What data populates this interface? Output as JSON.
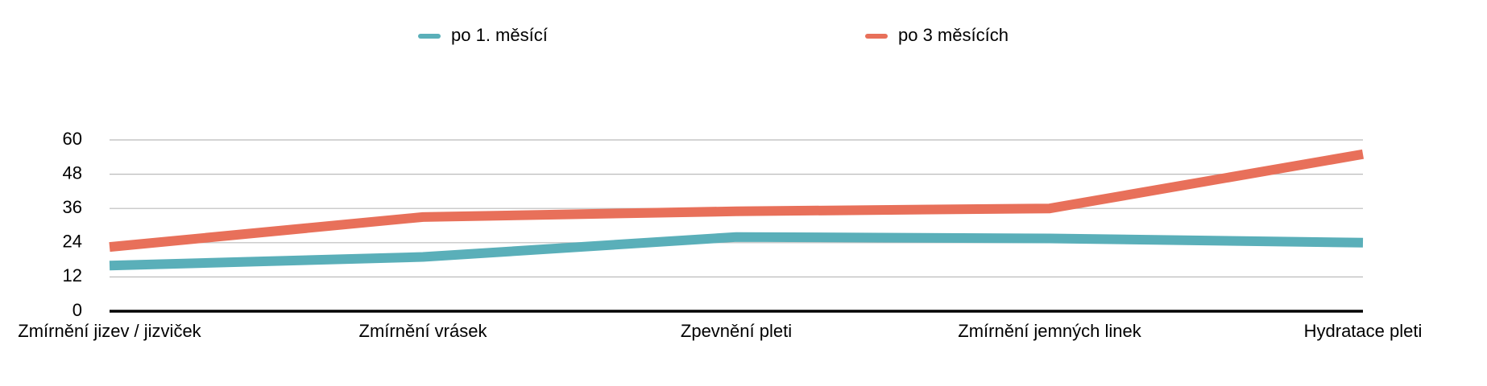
{
  "chart_data": {
    "type": "line",
    "categories": [
      "Zmírnění jizev / jizviček",
      "Zmírnění vrásek",
      "Zpevnění pleti",
      "Zmírnění jemných linek",
      "Hydratace pleti"
    ],
    "series": [
      {
        "name": "po 1. měsící",
        "color": "#5aafb9",
        "values": [
          16,
          19,
          26,
          25.5,
          24
        ]
      },
      {
        "name": "po 3 měsících",
        "color": "#e8705a",
        "values": [
          22.5,
          33,
          35,
          36,
          55
        ]
      }
    ],
    "ylim": [
      0,
      60
    ],
    "yticks": [
      0,
      12,
      24,
      36,
      48,
      60
    ],
    "grid": true,
    "legend": "top"
  }
}
